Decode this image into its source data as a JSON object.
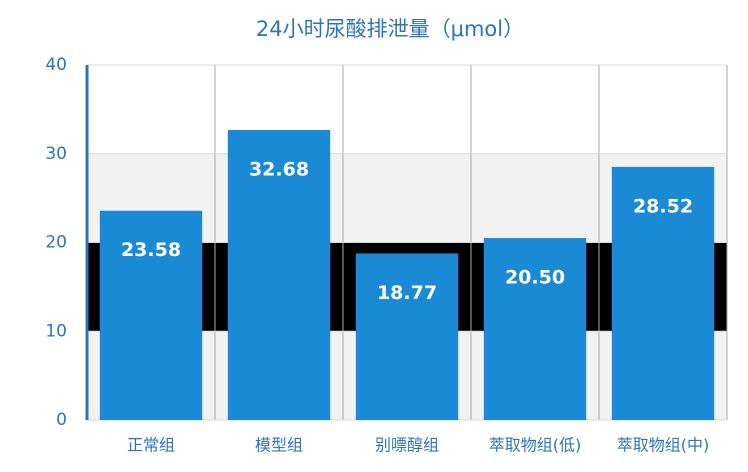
{
  "chart_data": {
    "type": "bar",
    "title": "24小时尿酸排泄量（μmol）",
    "categories": [
      "正常组",
      "模型组",
      "别嘌醇组",
      "萃取物组(低)",
      "萃取物组(中)"
    ],
    "values": [
      23.58,
      32.68,
      18.77,
      20.5,
      28.52
    ],
    "value_labels": [
      "23.58",
      "32.68",
      "18.77",
      "20.50",
      "28.52"
    ],
    "color": "#1a8ad4",
    "ylim": [
      0,
      40
    ],
    "yticks": [
      0,
      10,
      20,
      30,
      40
    ],
    "grid": true
  }
}
